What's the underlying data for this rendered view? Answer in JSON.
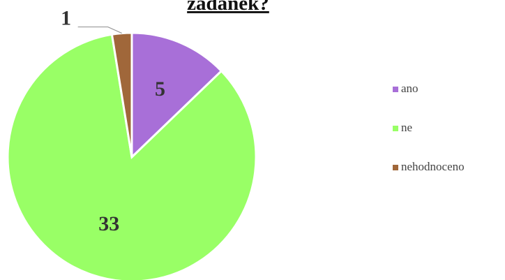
{
  "chart_data": {
    "type": "pie",
    "title": "žádanek?",
    "categories": [
      "ano",
      "ne",
      "nehodnoceno"
    ],
    "values": [
      5,
      33,
      1
    ],
    "colors": [
      "#a86fd8",
      "#99ff66",
      "#a0673a"
    ],
    "legend": "right"
  }
}
